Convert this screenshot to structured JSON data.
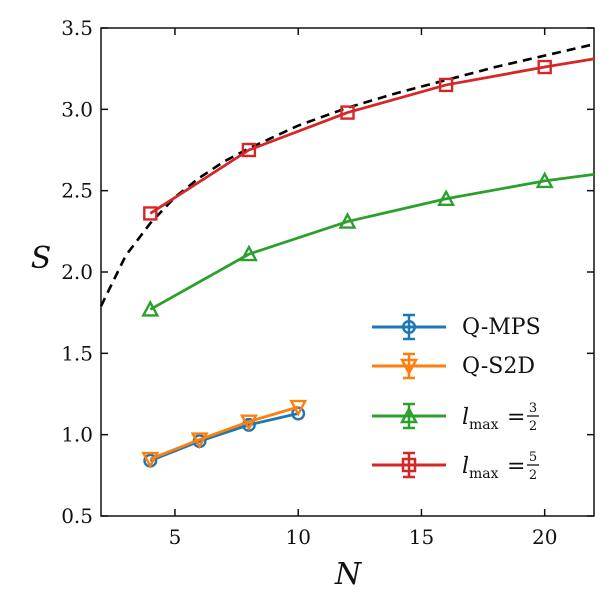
{
  "chart_data": {
    "type": "line",
    "xlabel": "N",
    "ylabel": "S",
    "xlim": [
      2,
      22
    ],
    "ylim": [
      0.5,
      3.5
    ],
    "xticks": [
      5,
      10,
      15,
      20
    ],
    "yticks": [
      0.5,
      1.0,
      1.5,
      2.0,
      2.5,
      3.0,
      3.5
    ],
    "x_tick_labels": [
      "5",
      "10",
      "15",
      "20"
    ],
    "y_tick_labels": [
      "0.5",
      "1.0",
      "1.5",
      "2.0",
      "2.5",
      "3.0",
      "3.5"
    ],
    "grid": false,
    "legend_position": "bottom-right",
    "series": [
      {
        "name": "Q-MPS",
        "legend_main": "Q-MPS",
        "color": "#1f77b4",
        "marker": "circle",
        "x": [
          4,
          6,
          8,
          10
        ],
        "y": [
          0.84,
          0.96,
          1.06,
          1.13
        ]
      },
      {
        "name": "Q-S2D",
        "legend_main": "Q-S2D",
        "color": "#ff7f0e",
        "marker": "triangle-down",
        "x": [
          4,
          6,
          8,
          10
        ],
        "y": [
          0.85,
          0.97,
          1.08,
          1.17
        ]
      },
      {
        "name": "l_max = 3/2",
        "legend_main": "l",
        "legend_sub": "max",
        "legend_eq": "=",
        "legend_num": "3",
        "legend_den": "2",
        "color": "#2ca02c",
        "marker": "triangle-up",
        "x": [
          4,
          8,
          12,
          16,
          20
        ],
        "y": [
          1.77,
          2.11,
          2.31,
          2.45,
          2.56
        ],
        "fit_end": [
          22,
          2.6
        ]
      },
      {
        "name": "l_max = 5/2",
        "legend_main": "l",
        "legend_sub": "max",
        "legend_eq": "=",
        "legend_num": "5",
        "legend_den": "2",
        "color": "#d62728",
        "marker": "square",
        "x": [
          4,
          8,
          12,
          16,
          20
        ],
        "y": [
          2.36,
          2.75,
          2.98,
          3.15,
          3.26
        ],
        "fit_end": [
          22,
          3.31
        ]
      }
    ],
    "reference_curve": {
      "style": "dashed",
      "color": "#000000",
      "x": [
        2,
        3,
        4,
        5,
        6,
        7,
        8,
        10,
        12,
        14,
        16,
        18,
        20,
        22
      ],
      "y": [
        1.79,
        2.1,
        2.3,
        2.46,
        2.58,
        2.68,
        2.76,
        2.9,
        3.01,
        3.1,
        3.18,
        3.26,
        3.33,
        3.4
      ]
    }
  }
}
